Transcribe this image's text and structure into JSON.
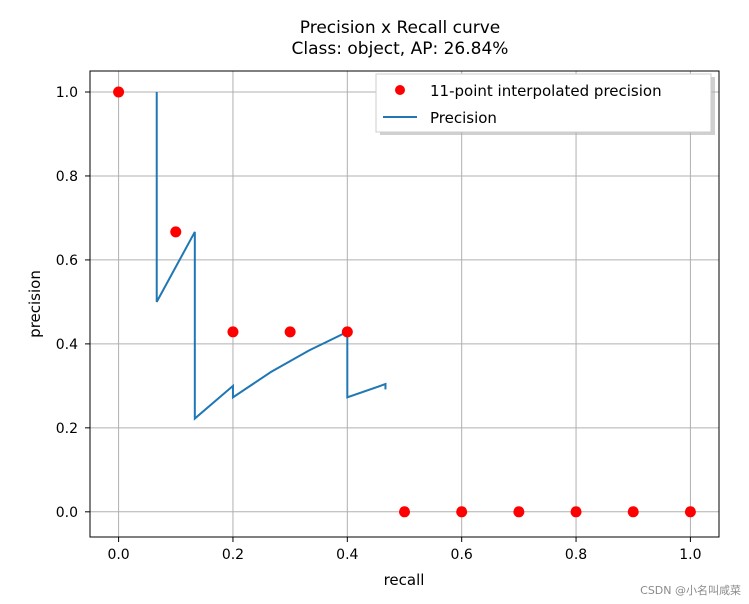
{
  "chart_data": {
    "type": "scatter",
    "title": "Precision x Recall curve",
    "subtitle": "Class: object, AP: 26.84%",
    "xlabel": "recall",
    "ylabel": "precision",
    "xlim": [
      -0.05,
      1.05
    ],
    "ylim": [
      -0.06,
      1.05
    ],
    "xticks": [
      "0.0",
      "0.2",
      "0.4",
      "0.6",
      "0.8",
      "1.0"
    ],
    "yticks": [
      "0.0",
      "0.2",
      "0.4",
      "0.6",
      "0.8",
      "1.0"
    ],
    "grid": true,
    "legend_position": "top-right",
    "series": [
      {
        "name": "11-point interpolated precision",
        "kind": "scatter",
        "color": "#ff0000",
        "x": [
          0.0,
          0.1,
          0.2,
          0.3,
          0.4,
          0.5,
          0.6,
          0.7,
          0.8,
          0.9,
          1.0
        ],
        "y": [
          1.0,
          0.6667,
          0.4286,
          0.4286,
          0.4286,
          0.0,
          0.0,
          0.0,
          0.0,
          0.0,
          0.0
        ]
      },
      {
        "name": "Precision",
        "kind": "line",
        "color": "#1f77b4",
        "x": [
          0.0667,
          0.0667,
          0.1333,
          0.1333,
          0.2,
          0.2,
          0.2667,
          0.3333,
          0.4,
          0.4,
          0.4667,
          0.4667
        ],
        "y": [
          1.0,
          0.5,
          0.6667,
          0.2222,
          0.3,
          0.2727,
          0.3333,
          0.3846,
          0.4286,
          0.2727,
          0.3043,
          0.2917
        ]
      }
    ]
  },
  "watermark": "CSDN @小名叫咸菜"
}
